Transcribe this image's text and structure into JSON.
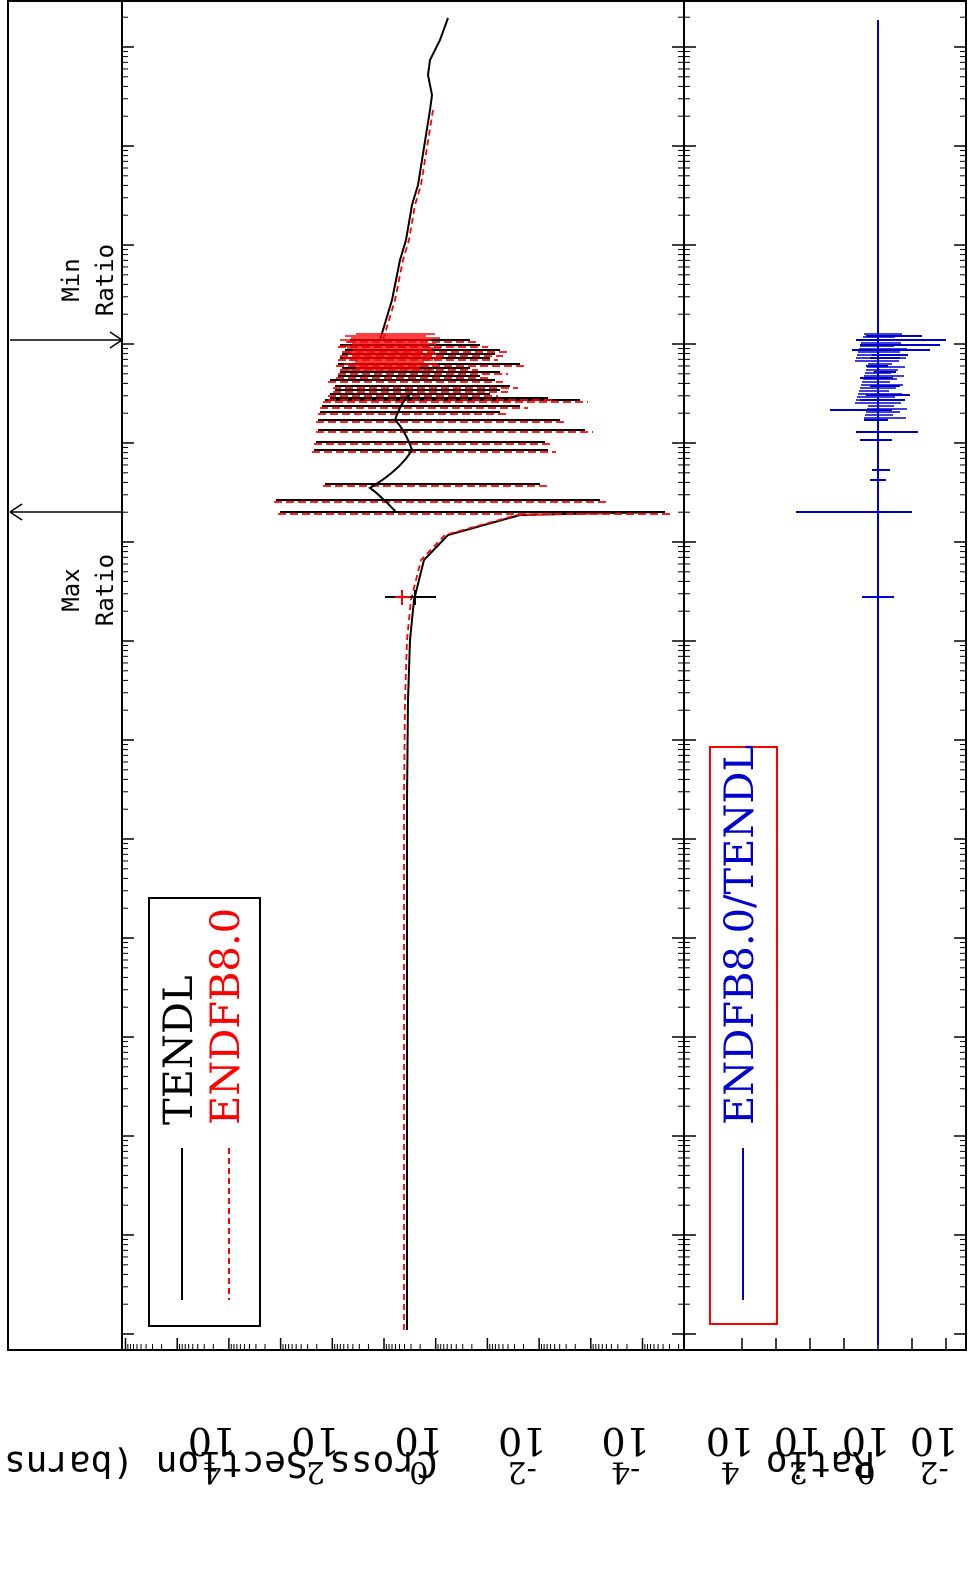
{
  "chart_data": [
    {
      "panel": "cross_section",
      "type": "line",
      "ylabel": "Cross Section (barns)",
      "yscale": "log",
      "ylim_exp": [
        -5,
        5
      ],
      "yticks": [
        {
          "base": "10",
          "exp": "4",
          "value": 10000
        },
        {
          "base": "10",
          "exp": "2",
          "value": 100
        },
        {
          "base": "10",
          "exp": "0",
          "value": 1
        },
        {
          "base": "10",
          "exp": "-2",
          "value": 0.01
        },
        {
          "base": "10",
          "exp": "-4",
          "value": 0.0001
        }
      ],
      "xscale": "log",
      "legend": {
        "placement": "top-left",
        "entries": [
          "TENDL",
          "ENDFB8.0"
        ]
      },
      "annotations": [
        {
          "text": [
            "Max",
            "Ratio"
          ]
        },
        {
          "text": [
            "Min",
            "Ratio"
          ]
        }
      ],
      "series": [
        {
          "name": "TENDL",
          "color": "#000000",
          "style": "solid"
        },
        {
          "name": "ENDFB8.0",
          "color": "#ff0000",
          "style": "dashed"
        }
      ]
    },
    {
      "panel": "ratio",
      "type": "line",
      "ylabel": "Ratio",
      "yscale": "log",
      "yticks": [
        {
          "base": "10",
          "exp": "4",
          "value": 10000
        },
        {
          "base": "10",
          "exp": "2",
          "value": 100
        },
        {
          "base": "10",
          "exp": "0",
          "value": 1
        },
        {
          "base": "10",
          "exp": "-2",
          "value": 0.01
        }
      ],
      "legend": {
        "placement": "top-left",
        "entries": [
          "ENDFB8.0/TENDL"
        ],
        "frame_color": "#ff0000"
      },
      "series": [
        {
          "name": "ENDFB8.0/TENDL",
          "color": "#0000cc",
          "style": "solid"
        }
      ]
    }
  ]
}
